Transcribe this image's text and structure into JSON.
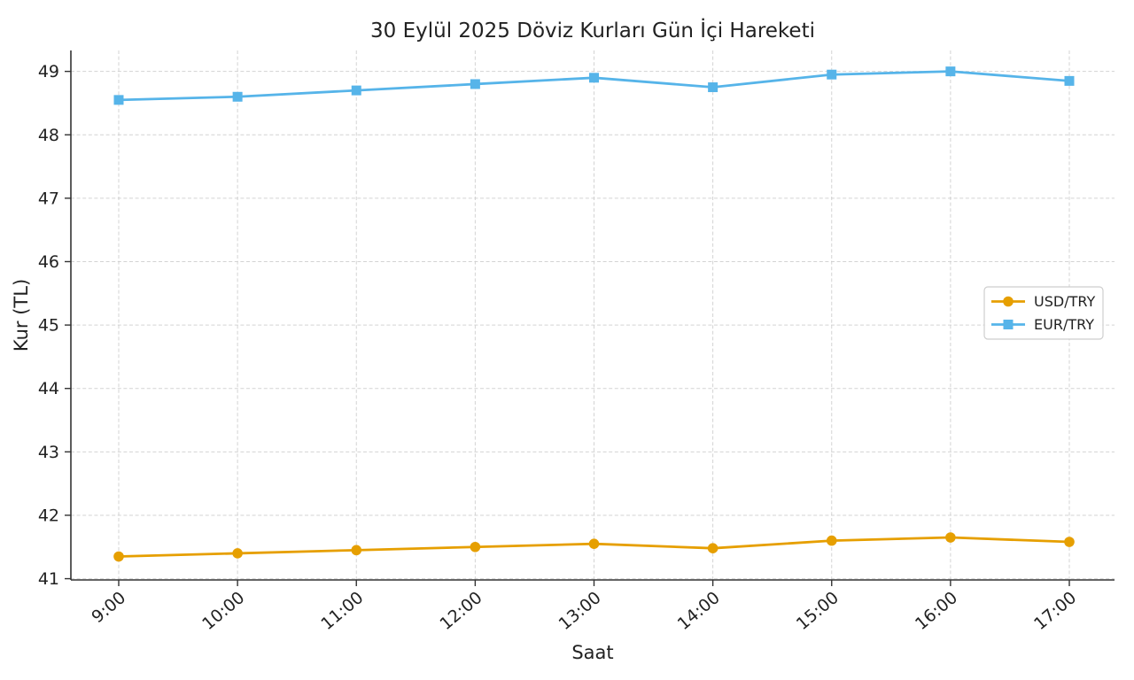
{
  "figure": {
    "background": "#ffffff"
  },
  "chart_data": {
    "type": "line",
    "title": "30 Eylül 2025 Döviz Kurları Gün İçi Hareketi",
    "xlabel": "Saat",
    "ylabel": "Kur (TL)",
    "categories": [
      "9:00",
      "10:00",
      "11:00",
      "12:00",
      "13:00",
      "14:00",
      "15:00",
      "16:00",
      "17:00"
    ],
    "y_ticks": [
      41,
      42,
      43,
      44,
      45,
      46,
      47,
      48,
      49
    ],
    "ylim": [
      40.98,
      49.33
    ],
    "grid": true,
    "grid_color": "#cccccc",
    "axis_color": "#333333",
    "text_color": "#222222",
    "tick_label_size": 19,
    "legend": {
      "position": "right-center",
      "background": "#ffffff",
      "border_color": "#cccccc",
      "font_size": 16
    },
    "series": [
      {
        "name": "USD/TRY",
        "color": "#E69F00",
        "marker": "circle",
        "values": [
          41.35,
          41.4,
          41.45,
          41.5,
          41.55,
          41.48,
          41.6,
          41.65,
          41.58
        ]
      },
      {
        "name": "EUR/TRY",
        "color": "#56B4E9",
        "marker": "square",
        "values": [
          48.55,
          48.6,
          48.7,
          48.8,
          48.9,
          48.75,
          48.95,
          49.0,
          48.85
        ]
      }
    ]
  }
}
